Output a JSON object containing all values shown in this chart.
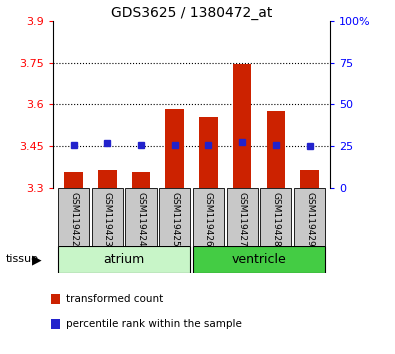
{
  "title": "GDS3625 / 1380472_at",
  "samples": [
    "GSM119422",
    "GSM119423",
    "GSM119424",
    "GSM119425",
    "GSM119426",
    "GSM119427",
    "GSM119428",
    "GSM119429"
  ],
  "red_values": [
    3.355,
    3.365,
    3.355,
    3.585,
    3.555,
    3.745,
    3.575,
    3.365
  ],
  "blue_values": [
    3.455,
    3.46,
    3.455,
    3.455,
    3.455,
    3.465,
    3.455,
    3.45
  ],
  "ymin": 3.3,
  "ymax": 3.9,
  "yticks": [
    3.3,
    3.45,
    3.6,
    3.75,
    3.9
  ],
  "ytick_labels": [
    "3.3",
    "3.45",
    "3.6",
    "3.75",
    "3.9"
  ],
  "right_yticks_pct": [
    0,
    25,
    50,
    75,
    100
  ],
  "right_ytick_labels": [
    "0",
    "25",
    "50",
    "75",
    "100%"
  ],
  "dotted_lines": [
    3.45,
    3.6,
    3.75
  ],
  "tissue_groups": [
    {
      "label": "atrium",
      "start": 0,
      "end": 3,
      "color": "#c8f5c8"
    },
    {
      "label": "ventricle",
      "start": 4,
      "end": 7,
      "color": "#44cc44"
    }
  ],
  "bar_bottom": 3.3,
  "bar_color": "#cc2200",
  "dot_color": "#2222cc",
  "bg_color": "#ffffff",
  "label_bg": "#c8c8c8",
  "legend_items": [
    {
      "color": "#cc2200",
      "label": "transformed count"
    },
    {
      "color": "#2222cc",
      "label": "percentile rank within the sample"
    }
  ]
}
